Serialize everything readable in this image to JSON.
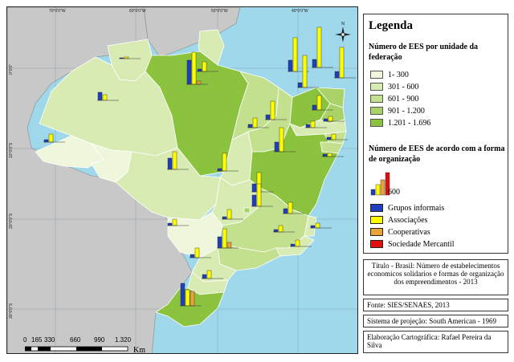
{
  "map": {
    "coords_top": [
      "70°0'0\"W",
      "60°0'0\"W",
      "50°0'0\"W",
      "40°0'0\"W"
    ],
    "coords_left": [
      "0°0'0\"",
      "10°0'0\"S",
      "20°0'0\"S",
      "30°0'0\"S"
    ],
    "colors": {
      "ocean": "#9fd8ea",
      "neighbor": "#c8c8c8",
      "class1": "#eef7dc",
      "class2": "#d8ebb3",
      "class3": "#c3e08f",
      "class4": "#a9d268",
      "class5": "#8cc33e"
    },
    "north_arrow": "compass-rose-icon"
  },
  "legend": {
    "title": "Legenda",
    "classes_heading": "Número de EES por unidade da federação",
    "classes": [
      {
        "label": "1- 300",
        "color": "#eef7dc"
      },
      {
        "label": "301 - 600",
        "color": "#d8ebb3"
      },
      {
        "label": "601 - 900",
        "color": "#c3e08f"
      },
      {
        "label": "901 - 1.200",
        "color": "#a9d268"
      },
      {
        "label": "1.201 - 1.696",
        "color": "#8cc33e"
      }
    ],
    "types_heading": "Número de EES de acordo com a forma de organização",
    "example_value": "600",
    "types": [
      {
        "label": "Grupos informais",
        "color": "#1f3fbf"
      },
      {
        "label": "Associações",
        "color": "#ffff00"
      },
      {
        "label": "Cooperativas",
        "color": "#e8a33a"
      },
      {
        "label": "Sociedade Mercantil",
        "color": "#e01010"
      }
    ]
  },
  "info": {
    "title": "Título - Brasil: Número de estabelecimentos economicos solidarios e formas de organização dos empreendimentos - 2013",
    "source": "Fonte: SIES/SENAES, 2013",
    "projection": "Sistema de projeção: South American - 1969",
    "author": "Elaboração Cartográfica: Rafael Pereira da Silva"
  },
  "scale": {
    "ticks": [
      "0",
      "165",
      "330",
      "660",
      "990",
      "1.320"
    ],
    "unit": "Km"
  }
}
